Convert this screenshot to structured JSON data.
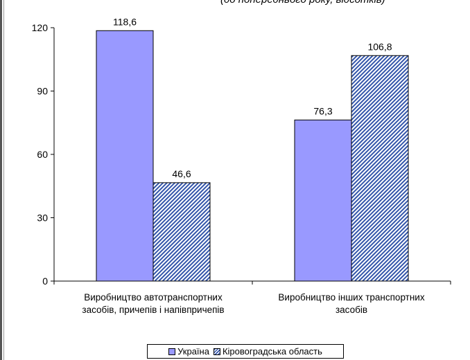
{
  "subtitle": "(до попереднього року, відсотків)",
  "colors": {
    "ukraine": "#9999ff",
    "region_hatch": "#3355aa"
  },
  "chart_data": {
    "type": "bar",
    "categories": [
      [
        "Виробництво автотранспортних",
        "засобів, причепів і напівпричепів"
      ],
      [
        "Виробництво інших транспортних",
        "засобів"
      ]
    ],
    "series": [
      {
        "name": "Україна",
        "values": [
          118.6,
          76.3
        ],
        "labels": [
          "118,6",
          "76,3"
        ]
      },
      {
        "name": "Кіровоградська область",
        "values": [
          46.6,
          106.8
        ],
        "labels": [
          "46,6",
          "106,8"
        ]
      }
    ],
    "ylim": [
      0,
      120
    ],
    "yticks": [
      0,
      30,
      60,
      90,
      120
    ],
    "legend": "bottom"
  }
}
